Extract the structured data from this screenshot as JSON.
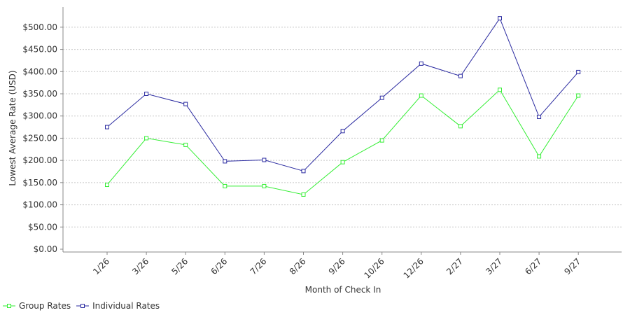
{
  "chart_data": {
    "type": "line",
    "xlabel": "Month of Check In",
    "ylabel": "Lowest Average Rate (USD)",
    "categories": [
      "1/26",
      "3/26",
      "5/26",
      "6/26",
      "7/26",
      "8/26",
      "9/26",
      "10/26",
      "12/26",
      "2/27",
      "3/27",
      "6/27",
      "9/27"
    ],
    "ylim": [
      0,
      550
    ],
    "yticks": [
      0,
      50,
      100,
      150,
      200,
      250,
      300,
      350,
      400,
      450,
      500
    ],
    "ytick_labels": [
      "$0.00",
      "$50.00",
      "$100.00",
      "$150.00",
      "$200.00",
      "$250.00",
      "$300.00",
      "$350.00",
      "$400.00",
      "$450.00",
      "$500.00"
    ],
    "grid": true,
    "legend_position": "bottom-left",
    "series": [
      {
        "name": "Group Rates",
        "color": "#33ee33",
        "values": [
          145,
          250,
          235,
          142,
          142,
          123,
          196,
          245,
          346,
          277,
          359,
          209,
          346
        ]
      },
      {
        "name": "Individual Rates",
        "color": "#2a2aa0",
        "values": [
          275,
          350,
          327,
          198,
          201,
          176,
          266,
          341,
          418,
          390,
          520,
          298,
          399
        ]
      }
    ]
  }
}
